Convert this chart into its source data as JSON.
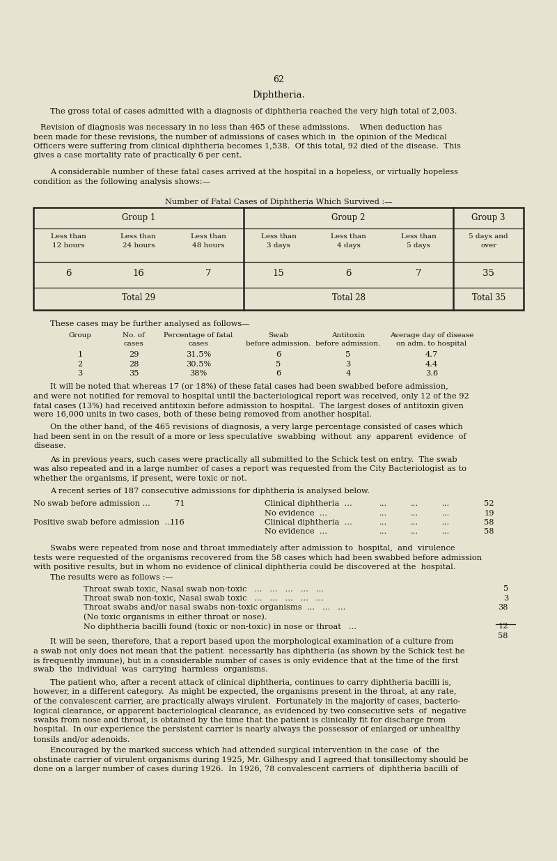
{
  "page_number": "62",
  "title": "Diphtheria.",
  "bg_color": "#e8e3d0",
  "text_color": "#1a1a1a",
  "para1": "The gross total of cases admitted with a diagnosis of diphtheria reached the very high total of 2,003.",
  "para2_lines": [
    "Revision of diagnosis was necessary in no less than 465 of these admissions.    When deduction has",
    "been made for these revisions, the number of admissions of cases which in  the opinion of the Medical",
    "Officers were suffering from clinical diphtheria becomes 1,538.  Of this total, 92 died of the disease.  This",
    "gives a case mortality rate of practically 6 per cent."
  ],
  "para3_lines": [
    "A considerable number of these fatal cases arrived at the hospital in a hopeless, or virtually hopeless",
    "condition as the following analysis shows:—"
  ],
  "table1_title": "Number of Fatal Cases of Diphtheria Which Survived :—",
  "table1": {
    "col_headers": [
      "Less than\n12 hours",
      "Less than\n24 hours",
      "Less than\n48 hours",
      "Less than\n3 days",
      "Less than\n4 days",
      "Less than\n5 days",
      "5 days and\nover"
    ],
    "values": [
      "6",
      "16",
      "7",
      "15",
      "6",
      "7",
      "35"
    ],
    "totals": [
      "Total 29",
      "Total 28",
      "Total 35"
    ]
  },
  "para4": "These cases may be further analysed as follows—",
  "table2_headers": [
    "Group",
    "No. of\ncases",
    "Percentage of fatal\ncases",
    "Swab\nbefore admission.",
    "Antitoxin\nbefore admission.",
    "Average day of disease\non adm. to hospital"
  ],
  "table2_rows": [
    [
      "1",
      "29",
      "31.5%",
      "6",
      "5",
      "4.7"
    ],
    [
      "2",
      "28",
      "30.5%",
      "5",
      "3",
      "4.4"
    ],
    [
      "3",
      "35",
      "38%",
      "6",
      "4",
      "3.6"
    ]
  ],
  "para5_lines": [
    "It will be noted that whereas 17 (or 18%) of these fatal cases had been swabbed before admission,",
    "and were not notified for removal to hospital until the bacteriological report was received, only 12 of the 92",
    "fatal cases (13%) had received antitoxin before admission to hospital.  The largest doses of antitoxin given",
    "were 16,000 units in two cases, both of these being removed from another hospital."
  ],
  "para6_lines": [
    "On the other hand, of the 465 revisions of diagnosis, a very large percentage consisted of cases which",
    "had been sent in on the result of a more or less speculative  swabbing  without  any  apparent  evidence  of",
    "disease."
  ],
  "para7_lines": [
    "As in previous years, such cases were practically all submitted to the Schick test on entry.  The swab",
    "was also repeated and in a large number of cases a report was requested from the City Bacteriologist as to",
    "whether the organisms, if present, were toxic or not."
  ],
  "para8": "A recent series of 187 consecutive admissions for diphtheria is analysed below.",
  "para9_lines": [
    "Swabs were repeated from nose and throat immediately after admission to  hospital,  and  virulence",
    "tests were requested of the organisms recovered from the 58 cases which had been swabbed before admission",
    "with positive results, but in whom no evidence of clinical diphtheria could be discovered at the  hospital."
  ],
  "para10": "The results were as follows :—",
  "para11_lines": [
    "It will be seen, therefore, that a report based upon the morphological examination of a culture from",
    "a swab not only does not mean that the patient  necessarily has diphtheria (as shown by the Schick test he",
    "is frequently immune), but in a considerable number of cases is only evidence that at the time of the first",
    "swab  the  individual  was  carrying  harmless  organisms."
  ],
  "para12_lines": [
    "The patient who, after a recent attack of clinical diphtheria, continues to carry diphtheria bacilli is,",
    "however, in a different category.  As might be expected, the organisms present in the throat, at any rate,",
    "of the convalescent carrier, are practically always virulent.  Fortunately in the majority of cases, bacterio-",
    "logical clearance, or apparent bacteriological clearance, as evidenced by two consecutive sets  of  negative",
    "swabs from nose and throat, is obtained by the time that the patient is clinically fit for discharge from",
    "hospital.  In our experience the persistent carrier is nearly always the possessor of enlarged or unhealthy",
    "tonsils and/or adenoids."
  ],
  "para13_lines": [
    "Encouraged by the marked success which had attended surgical intervention in the case  of  the",
    "obstinate carrier of virulent organisms during 1925, Mr. Gilhespy and I agreed that tonsillectomy should be",
    "done on a larger number of cases during 1926.  In 1926, 78 convalescent carriers of  diphtheria bacilli of"
  ]
}
